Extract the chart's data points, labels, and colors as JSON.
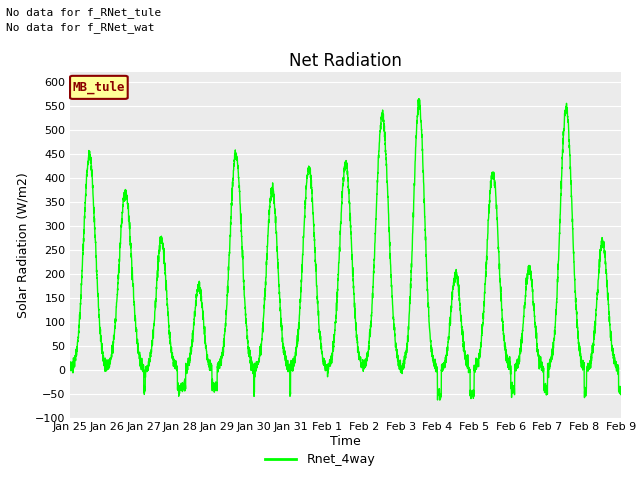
{
  "title": "Net Radiation",
  "xlabel": "Time",
  "ylabel": "Solar Radiation (W/m2)",
  "ylim": [
    -100,
    620
  ],
  "yticks": [
    -100,
    -50,
    0,
    50,
    100,
    150,
    200,
    250,
    300,
    350,
    400,
    450,
    500,
    550,
    600
  ],
  "line_color": "#00FF00",
  "line_width": 1.0,
  "figure_bg": "#FFFFFF",
  "axes_bg": "#EBEBEB",
  "grid_color": "#FFFFFF",
  "note_line1": "No data for f_RNet_tule",
  "note_line2": "No data for f_RNet_wat",
  "legend_label": "Rnet_4way",
  "tag_label": "MB_tule",
  "tag_bg": "#FFFF99",
  "tag_border": "#8B0000",
  "tag_text_color": "#8B0000",
  "xtick_labels": [
    "Jan 25",
    "Jan 26",
    "Jan 27",
    "Jan 28",
    "Jan 29",
    "Jan 30",
    "Jan 31",
    "Feb 1",
    "Feb 2",
    "Feb 3",
    "Feb 4",
    "Feb 5",
    "Feb 6",
    "Feb 7",
    "Feb 8",
    "Feb 9"
  ],
  "title_fontsize": 12,
  "axis_label_fontsize": 9,
  "tick_fontsize": 8,
  "note_fontsize": 8,
  "legend_fontsize": 9
}
